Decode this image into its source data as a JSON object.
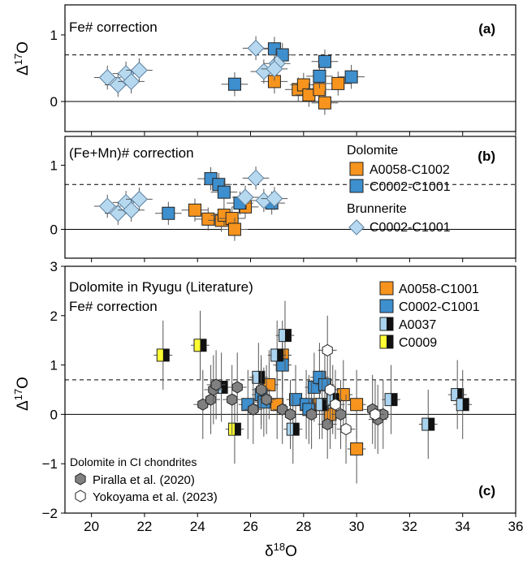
{
  "chart_data": [
    {
      "panel": "(a)",
      "type": "scatter",
      "title": "Fe# correction",
      "ylabel_base": "Δ",
      "ylabel_sup": "17",
      "ylabel_tail": "O",
      "xlim": [
        19,
        36
      ],
      "ylim": [
        -0.45,
        1.45
      ],
      "yticks": [
        0,
        1
      ],
      "dashed_line": 0.7,
      "solid_line": 0,
      "series": [
        {
          "name": "Dolomite A0058-C1002",
          "marker": "square",
          "color": "#f7941d",
          "points": [
            [
              26.9,
              0.3
            ],
            [
              27.8,
              0.18
            ],
            [
              28.0,
              0.25
            ],
            [
              28.2,
              0.1
            ],
            [
              28.6,
              0.18
            ],
            [
              28.8,
              -0.02
            ],
            [
              29.3,
              0.27
            ]
          ]
        },
        {
          "name": "Dolomite C0002-C1001",
          "marker": "square",
          "color": "#3d8fce",
          "points": [
            [
              25.4,
              0.26
            ],
            [
              26.9,
              0.79
            ],
            [
              27.2,
              0.7
            ],
            [
              28.8,
              0.6
            ],
            [
              28.6,
              0.38
            ],
            [
              29.8,
              0.37
            ]
          ]
        },
        {
          "name": "Brunnerite C0002-C1001",
          "marker": "diamond",
          "color": "#b7d9f0",
          "points": [
            [
              20.6,
              0.36
            ],
            [
              21.0,
              0.25
            ],
            [
              21.3,
              0.42
            ],
            [
              21.5,
              0.3
            ],
            [
              21.8,
              0.47
            ],
            [
              26.2,
              0.8
            ],
            [
              26.5,
              0.45
            ],
            [
              27.0,
              0.57
            ],
            [
              26.9,
              0.49
            ]
          ]
        }
      ]
    },
    {
      "panel": "(b)",
      "type": "scatter",
      "title": "(Fe+Mn)# correction",
      "ylabel_base": "",
      "xlim": [
        19,
        36
      ],
      "ylim": [
        -0.45,
        1.45
      ],
      "yticks": [
        0,
        1
      ],
      "dashed_line": 0.7,
      "solid_line": 0,
      "legend": {
        "group1": "Dolomite",
        "item1": "A0058-C1002",
        "item2": "C0002-C1001",
        "group2": "Brunnerite",
        "item3": "C0002-C1001"
      },
      "series": [
        {
          "name": "Dolomite A0058-C1002",
          "marker": "square",
          "color": "#f7941d",
          "points": [
            [
              23.9,
              0.3
            ],
            [
              24.4,
              0.16
            ],
            [
              24.9,
              0.14
            ],
            [
              25.0,
              0.22
            ],
            [
              25.3,
              0.17
            ],
            [
              25.4,
              0.0
            ],
            [
              25.8,
              0.35
            ]
          ]
        },
        {
          "name": "Dolomite C0002-C1001",
          "marker": "square",
          "color": "#3d8fce",
          "points": [
            [
              22.9,
              0.25
            ],
            [
              24.5,
              0.79
            ],
            [
              24.8,
              0.7
            ],
            [
              25.0,
              0.58
            ],
            [
              25.6,
              0.41
            ],
            [
              26.8,
              0.41
            ]
          ]
        },
        {
          "name": "Brunnerite C0002-C1001",
          "marker": "diamond",
          "color": "#b7d9f0",
          "points": [
            [
              20.6,
              0.36
            ],
            [
              21.0,
              0.25
            ],
            [
              21.3,
              0.42
            ],
            [
              21.5,
              0.3
            ],
            [
              21.8,
              0.47
            ],
            [
              25.8,
              0.5
            ],
            [
              26.2,
              0.8
            ],
            [
              26.5,
              0.45
            ],
            [
              26.9,
              0.48
            ]
          ]
        }
      ]
    },
    {
      "panel": "(c)",
      "type": "scatter",
      "title": "Dolomite in Ryugu (Literature)",
      "subtitle": "Fe# correction",
      "xlabel_base": "δ",
      "xlabel_sup": "18",
      "xlabel_tail": "O",
      "ylabel_base": "Δ",
      "ylabel_sup": "17",
      "ylabel_tail": "O",
      "xlim": [
        19,
        36
      ],
      "ylim": [
        -2,
        3
      ],
      "xticks": [
        20,
        22,
        24,
        26,
        28,
        30,
        32,
        34,
        36
      ],
      "yticks": [
        -2,
        -1,
        0,
        1,
        2,
        3
      ],
      "dashed_line": 0.7,
      "solid_line": 0,
      "legend": {
        "item1": "A0058-C1001",
        "item2": "C0002-C1001",
        "item3": "A0037",
        "item4": "C0009",
        "group2": "Dolomite in CI chondrites",
        "item5": "Piralla et al. (2020)",
        "item6": "Yokoyama et al. (2023)"
      },
      "series": [
        {
          "name": "A0058-C1001",
          "marker": "square",
          "color": "#f7941d",
          "points": [
            [
              26.7,
              0.6
            ],
            [
              27.0,
              0.2
            ],
            [
              27.2,
              1.2
            ],
            [
              28.6,
              0.2
            ],
            [
              29.0,
              0.0
            ],
            [
              29.5,
              0.4
            ],
            [
              30.0,
              -0.7
            ],
            [
              30.0,
              0.2
            ]
          ]
        },
        {
          "name": "C0002-C1001",
          "marker": "square",
          "color": "#3d8fce",
          "points": [
            [
              25.9,
              0.2
            ],
            [
              26.4,
              0.4
            ],
            [
              26.5,
              0.25
            ],
            [
              27.2,
              1.0
            ],
            [
              27.7,
              0.3
            ],
            [
              28.1,
              0.2
            ],
            [
              28.2,
              0.1
            ],
            [
              28.4,
              0.55
            ],
            [
              28.6,
              0.75
            ],
            [
              28.8,
              0.6
            ]
          ]
        },
        {
          "name": "A0037",
          "marker": "split-square",
          "color": "#a9d3ee",
          "points": [
            [
              24.9,
              0.55
            ],
            [
              26.3,
              0.75
            ],
            [
              27.3,
              1.6
            ],
            [
              27.0,
              1.2
            ],
            [
              27.6,
              -0.3
            ],
            [
              28.7,
              0.2
            ],
            [
              29.1,
              0.3
            ],
            [
              31.3,
              0.3
            ],
            [
              32.7,
              -0.2
            ],
            [
              33.8,
              0.4
            ],
            [
              34.0,
              0.2
            ]
          ]
        },
        {
          "name": "C0009",
          "marker": "split-square",
          "color": "#ffff33",
          "points": [
            [
              22.7,
              1.2
            ],
            [
              24.1,
              1.4
            ],
            [
              25.4,
              -0.3
            ]
          ]
        },
        {
          "name": "Piralla et al. (2020)",
          "marker": "hexagon",
          "color": "#808080",
          "points": [
            [
              24.2,
              0.2
            ],
            [
              24.5,
              0.3
            ],
            [
              24.6,
              0.5
            ],
            [
              24.7,
              0.6
            ],
            [
              25.3,
              0.3
            ],
            [
              25.5,
              0.55
            ],
            [
              26.1,
              0.1
            ],
            [
              26.4,
              0.5
            ],
            [
              26.6,
              0.3
            ],
            [
              27.2,
              0.1
            ],
            [
              27.5,
              0.0
            ],
            [
              28.3,
              0.0
            ],
            [
              28.9,
              -0.2
            ],
            [
              29.4,
              0.0
            ],
            [
              30.6,
              0.1
            ],
            [
              30.8,
              -0.1
            ],
            [
              31.0,
              0.0
            ]
          ]
        },
        {
          "name": "Yokoyama et al. (2023)",
          "marker": "hexagon",
          "color": "#ffffff",
          "points": [
            [
              28.9,
              1.3
            ],
            [
              29.0,
              0.5
            ],
            [
              29.2,
              0.2
            ],
            [
              29.6,
              -0.3
            ],
            [
              30.7,
              0.0
            ]
          ]
        }
      ]
    }
  ]
}
